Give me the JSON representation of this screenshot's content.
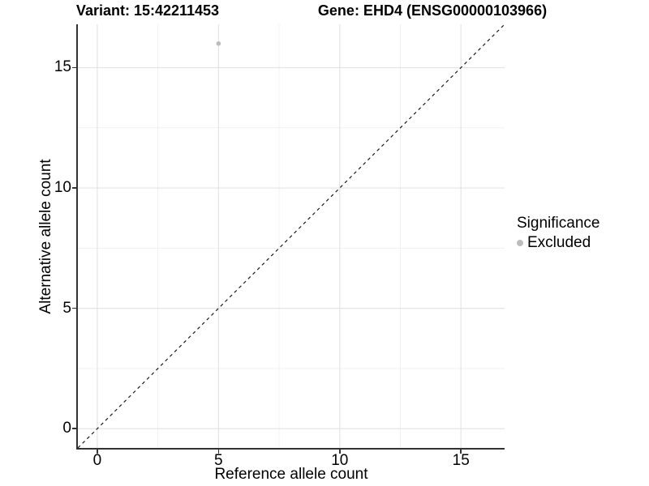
{
  "chart_data": {
    "type": "scatter",
    "title_left": "Variant: 15:42211453",
    "title_right": "Gene: EHD4 (ENSG00000103966)",
    "xlabel": "Reference allele count",
    "ylabel": "Alternative allele count",
    "xlim": [
      -0.8,
      16.8
    ],
    "ylim": [
      -0.8,
      16.8
    ],
    "xticks": [
      0,
      5,
      10,
      15
    ],
    "yticks": [
      0,
      5,
      10,
      15
    ],
    "x_minor_gridlines": [
      2.5,
      7.5,
      12.5
    ],
    "y_minor_gridlines": [
      2.5,
      7.5,
      12.5
    ],
    "grid": true,
    "legend_position": "right",
    "series": [
      {
        "name": "Excluded",
        "color": "#bdbdbd",
        "points": [
          {
            "x": 5,
            "y": 16
          }
        ]
      }
    ],
    "reference_line": {
      "kind": "identity",
      "style": "dashed",
      "color": "#1a1a1a",
      "from": [
        -0.8,
        -0.8
      ],
      "to": [
        16.8,
        16.8
      ]
    },
    "legend": {
      "title": "Significance",
      "items": [
        {
          "label": "Excluded",
          "color": "#bdbdbd"
        }
      ]
    }
  },
  "colors": {
    "background": "#ffffff",
    "grid_major": "#e4e4e4",
    "grid_minor": "#f1f1f1",
    "axis_line": "#333333",
    "point": "#bdbdbd",
    "text": "#000000"
  }
}
